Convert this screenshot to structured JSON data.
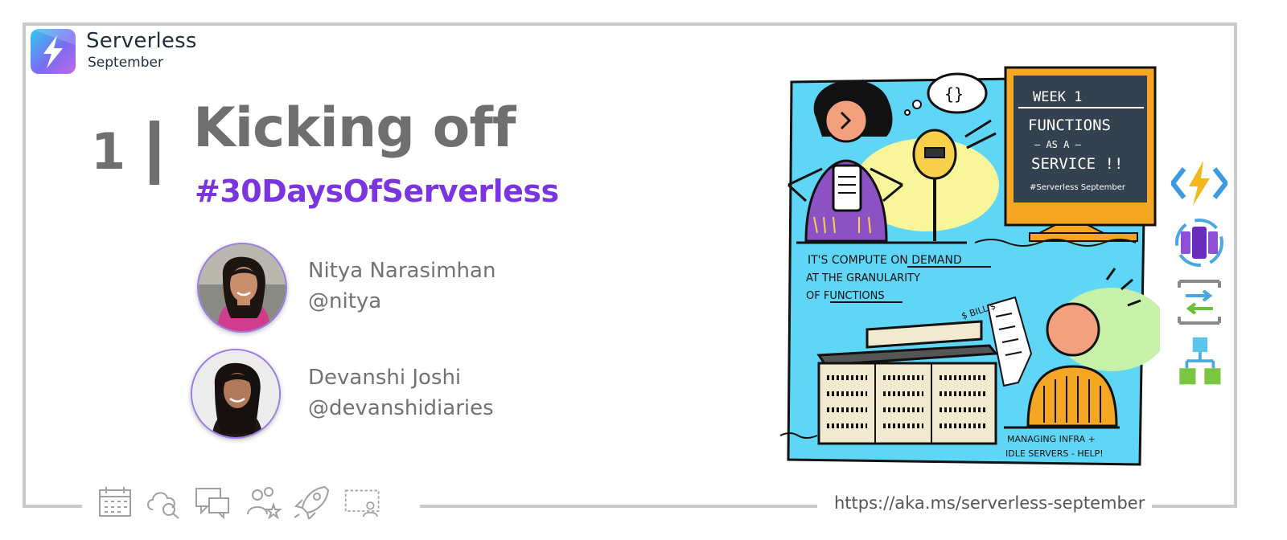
{
  "brand": {
    "title": "Serverless",
    "subtitle": "September",
    "logo_icon": "lightning-bolt-icon"
  },
  "heading": {
    "day_number": "1",
    "title": "Kicking off",
    "hashtag": "#30DaysOfServerless"
  },
  "authors": [
    {
      "name": "Nitya Narasimhan",
      "handle": "@nitya",
      "avatar": "avatar-photo"
    },
    {
      "name": "Devanshi Joshi",
      "handle": "@devanshidiaries",
      "avatar": "avatar-photo"
    }
  ],
  "illustration": {
    "board": {
      "week": "WEEK 1",
      "line1": "FUNCTIONS",
      "line2": "— AS A —",
      "line3": "SERVICE !!",
      "tag": "#Serverless September"
    },
    "caption_main": {
      "line1": "IT'S COMPUTE ON DEMAND",
      "line2": "AT THE GRANULARITY",
      "line3": "OF FUNCTIONS"
    },
    "bill_label": "$ BILL $",
    "caption_bottom": {
      "line1": "MANAGING INFRA +",
      "line2": "IDLE SERVERS - HELP!"
    },
    "thought_bubble": "{}"
  },
  "service_icons": [
    "azure-functions-icon",
    "container-apps-icon",
    "logic-apps-icon",
    "durable-functions-icon"
  ],
  "footer": {
    "url": "https://aka.ms/serverless-september",
    "icons": [
      "calendar-icon",
      "cloud-search-icon",
      "chat-icon",
      "people-star-icon",
      "rocket-icon",
      "presentation-icon"
    ]
  },
  "colors": {
    "accent": "#7b35e0",
    "heading": "#6f6f6f",
    "frame": "#c9c9c9",
    "illustration_bg": "#5fd6f5",
    "board_frame": "#f5a623",
    "board": "#34424f"
  }
}
